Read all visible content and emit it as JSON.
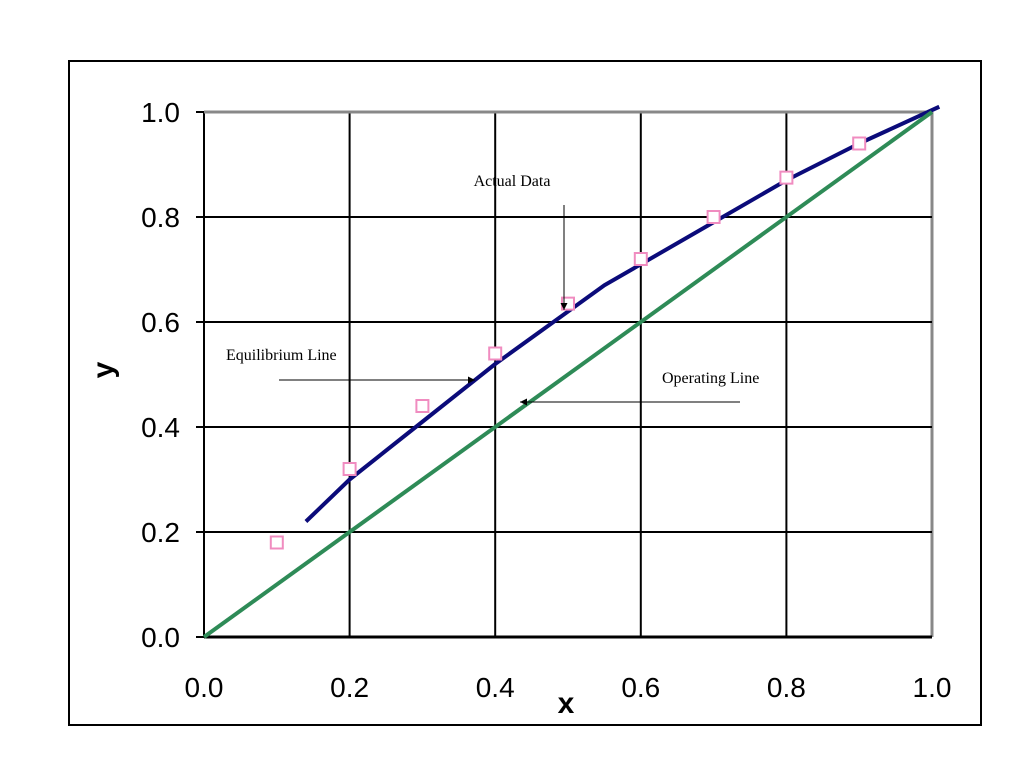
{
  "chart_data": {
    "type": "line",
    "title": "",
    "xlabel": "x",
    "ylabel": "y",
    "xlim": [
      0,
      1
    ],
    "ylim": [
      0,
      1
    ],
    "x_ticks": [
      "0.0",
      "0.2",
      "0.4",
      "0.6",
      "0.8",
      "1.0"
    ],
    "y_ticks": [
      "0.0",
      "0.2",
      "0.4",
      "0.6",
      "0.8",
      "1.0"
    ],
    "grid": true,
    "legend": "none",
    "series": [
      {
        "name": "Equilibrium Line",
        "kind": "line",
        "color": "#0b0b7a",
        "x": [
          0.14,
          0.2,
          0.3,
          0.4,
          0.5,
          0.55,
          0.6,
          0.7,
          0.8,
          0.9,
          1.01
        ],
        "y": [
          0.22,
          0.3,
          0.41,
          0.52,
          0.62,
          0.67,
          0.71,
          0.79,
          0.87,
          0.94,
          1.01
        ]
      },
      {
        "name": "Operating Line",
        "kind": "line",
        "color": "#2e8b57",
        "x": [
          0.0,
          1.0
        ],
        "y": [
          0.0,
          1.0
        ]
      },
      {
        "name": "Actual Data",
        "kind": "scatter",
        "color": "#f08cc0",
        "x": [
          0.1,
          0.2,
          0.3,
          0.4,
          0.5,
          0.6,
          0.7,
          0.8,
          0.9
        ],
        "y": [
          0.18,
          0.32,
          0.44,
          0.54,
          0.635,
          0.72,
          0.8,
          0.875,
          0.94
        ]
      }
    ],
    "annotations": [
      {
        "text": "Actual Data",
        "points_to": [
          0.5,
          0.635
        ]
      },
      {
        "text": "Equilibrium Line",
        "points_to": [
          0.37,
          0.49
        ]
      },
      {
        "text": "Operating Line",
        "points_to": [
          0.44,
          0.44
        ]
      }
    ]
  }
}
